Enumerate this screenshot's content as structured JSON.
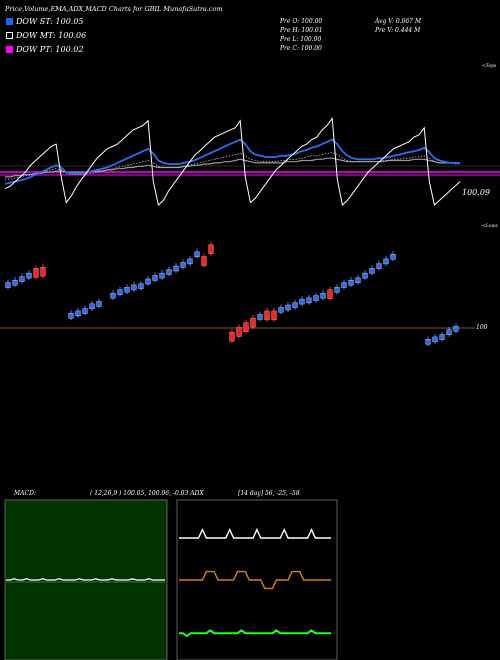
{
  "header": {
    "title": "Price,Volume,EMA,ADX,MACD Charts for GBIL MunafaSutra.com",
    "prev_open": "Pre   O: 100.00",
    "prev_high": "Pre   H: 100.01",
    "prev_low": "Pre   L: 100.00",
    "prev_close": "Pre   C: 100.00",
    "avg_vol": "Avg V: 0.067  M",
    "prev_vol": "Pre   V: 0.444  M"
  },
  "legend": [
    {
      "label": "DOW ST: 100.05",
      "color": "#1e64ff"
    },
    {
      "label": "DOW MT: 100.06",
      "color": "#000000"
    },
    {
      "label": "DOW PT: 100.02",
      "color": "#ff00ff"
    }
  ],
  "panel_labels": {
    "upper_right_top": "<Tops",
    "price_tag": "100.09",
    "lower_right_top": "<Lows",
    "price_level": "100"
  },
  "indicators": {
    "macd_label": "MACD:",
    "macd_values": "( 12,26,9 ) 100.05,  100.06,  -0.03 ADX",
    "adx_values": "[14  day] 56,  -25,  -58"
  },
  "colors": {
    "blue_ema": "#2a6df4",
    "dotted_ema": "#bfbfbf",
    "magenta": "#ff00ff",
    "up_candle": "#2a6df4",
    "down_candle": "#ff2020",
    "macd_bg": "#003300",
    "adx_white": "#ffffff",
    "adx_orange": "#e08000",
    "adx_green": "#22ff22"
  },
  "chart_data": {
    "type": "line",
    "upper_panel": {
      "description_series": [
        "price_white",
        "ema_blue",
        "ema_gray",
        "ema_dotted"
      ],
      "magenta_level": 100.02,
      "last_price": 100.09,
      "x": [
        0,
        1,
        2,
        3,
        4,
        5,
        6,
        7,
        8,
        9,
        10,
        11,
        12,
        13,
        14,
        15,
        16,
        17,
        18,
        19,
        20,
        21,
        22,
        23,
        24,
        25,
        26,
        27,
        28,
        29,
        30,
        31,
        32,
        33,
        34,
        35,
        36,
        37,
        38,
        39,
        40,
        41,
        42,
        43,
        44,
        45,
        46,
        47,
        48,
        49,
        50,
        51,
        52,
        53,
        54,
        55,
        56,
        57,
        58,
        59,
        60,
        61,
        62,
        63,
        64,
        65,
        66,
        67,
        68,
        69,
        70,
        71,
        72,
        73,
        74,
        75,
        76,
        77,
        78,
        79,
        80,
        81,
        82,
        83,
        84,
        85,
        86,
        87,
        88,
        89
      ],
      "price_white": [
        20,
        22,
        26,
        30,
        34,
        40,
        44,
        48,
        52,
        56,
        58,
        30,
        8,
        14,
        22,
        28,
        34,
        40,
        46,
        50,
        54,
        56,
        58,
        62,
        66,
        70,
        72,
        74,
        78,
        26,
        6,
        10,
        18,
        24,
        30,
        36,
        42,
        48,
        52,
        56,
        60,
        64,
        66,
        68,
        70,
        72,
        78,
        30,
        8,
        12,
        18,
        24,
        30,
        36,
        40,
        44,
        48,
        52,
        56,
        58,
        62,
        64,
        70,
        74,
        80,
        28,
        6,
        10,
        16,
        22,
        28,
        34,
        38,
        42,
        46,
        50,
        54,
        56,
        58,
        60,
        64,
        66,
        72,
        26,
        6,
        10,
        14,
        18,
        22,
        26
      ],
      "ema_blue": [
        24,
        25,
        26,
        27,
        28,
        30,
        32,
        34,
        36,
        38,
        40,
        38,
        34,
        33,
        33,
        33,
        34,
        35,
        36,
        37,
        38,
        40,
        42,
        44,
        46,
        48,
        50,
        52,
        54,
        50,
        44,
        42,
        41,
        41,
        41,
        42,
        43,
        44,
        46,
        48,
        50,
        52,
        54,
        56,
        58,
        60,
        62,
        58,
        52,
        49,
        48,
        47,
        47,
        47,
        48,
        48,
        49,
        50,
        52,
        53,
        55,
        56,
        58,
        60,
        62,
        58,
        52,
        48,
        46,
        45,
        45,
        45,
        45,
        46,
        46,
        47,
        48,
        49,
        50,
        51,
        52,
        53,
        55,
        51,
        46,
        44,
        43,
        42,
        42,
        42
      ],
      "ema_gray": [
        30,
        30,
        31,
        31,
        32,
        32,
        33,
        33,
        34,
        34,
        35,
        35,
        34,
        34,
        34,
        34,
        34,
        35,
        35,
        35,
        36,
        36,
        37,
        37,
        38,
        38,
        39,
        39,
        40,
        39,
        38,
        38,
        38,
        38,
        38,
        39,
        39,
        40,
        40,
        41,
        41,
        42,
        42,
        43,
        43,
        44,
        45,
        44,
        43,
        42,
        42,
        42,
        42,
        42,
        42,
        43,
        43,
        43,
        44,
        44,
        44,
        45,
        45,
        46,
        46,
        45,
        44,
        43,
        43,
        43,
        43,
        43,
        43,
        43,
        43,
        44,
        44,
        44,
        44,
        44,
        45,
        45,
        45,
        44,
        43,
        42,
        42,
        42,
        42,
        42
      ],
      "ema_dotted": [
        28,
        28,
        29,
        30,
        31,
        32,
        33,
        34,
        35,
        36,
        37,
        36,
        33,
        32,
        32,
        32,
        33,
        33,
        34,
        35,
        36,
        37,
        38,
        39,
        40,
        41,
        42,
        43,
        44,
        42,
        39,
        38,
        38,
        38,
        38,
        39,
        40,
        41,
        42,
        43,
        44,
        45,
        46,
        47,
        48,
        49,
        50,
        48,
        45,
        44,
        43,
        43,
        43,
        43,
        44,
        44,
        45,
        45,
        46,
        47,
        48,
        48,
        49,
        50,
        51,
        49,
        46,
        44,
        43,
        43,
        43,
        43,
        43,
        43,
        44,
        44,
        45,
        45,
        46,
        46,
        47,
        47,
        48,
        46,
        43,
        42,
        42,
        42,
        41,
        41
      ],
      "ylim": [
        0,
        100
      ]
    },
    "candles": [
      [
        0,
        74,
        0
      ],
      [
        1,
        76,
        0
      ],
      [
        2,
        79,
        0
      ],
      [
        3,
        82,
        0
      ],
      [
        4,
        86,
        1
      ],
      [
        5,
        87,
        1
      ],
      [
        9,
        48,
        0
      ],
      [
        10,
        50,
        0
      ],
      [
        11,
        52,
        0
      ],
      [
        12,
        56,
        0
      ],
      [
        13,
        58,
        0
      ],
      [
        15,
        65,
        0
      ],
      [
        16,
        68,
        0
      ],
      [
        17,
        70,
        0
      ],
      [
        18,
        72,
        0
      ],
      [
        19,
        73,
        0
      ],
      [
        20,
        77,
        0
      ],
      [
        21,
        80,
        0
      ],
      [
        22,
        82,
        0
      ],
      [
        23,
        85,
        0
      ],
      [
        24,
        88,
        0
      ],
      [
        25,
        91,
        0
      ],
      [
        26,
        94,
        0
      ],
      [
        27,
        100,
        0
      ],
      [
        28,
        96,
        1
      ],
      [
        29,
        106,
        1
      ],
      [
        32,
        32,
        1
      ],
      [
        33,
        36,
        1
      ],
      [
        34,
        40,
        1
      ],
      [
        35,
        44,
        1
      ],
      [
        36,
        47,
        0
      ],
      [
        37,
        50,
        1
      ],
      [
        38,
        50,
        1
      ],
      [
        39,
        53,
        0
      ],
      [
        40,
        55,
        0
      ],
      [
        41,
        57,
        0
      ],
      [
        42,
        60,
        0
      ],
      [
        43,
        61,
        0
      ],
      [
        44,
        63,
        0
      ],
      [
        45,
        65,
        0
      ],
      [
        46,
        68,
        1
      ],
      [
        47,
        70,
        0
      ],
      [
        48,
        74,
        0
      ],
      [
        49,
        76,
        0
      ],
      [
        50,
        78,
        0
      ],
      [
        51,
        82,
        0
      ],
      [
        52,
        86,
        0
      ],
      [
        53,
        90,
        0
      ],
      [
        54,
        94,
        0
      ],
      [
        55,
        98,
        0
      ],
      [
        60,
        26,
        0
      ],
      [
        61,
        28,
        0
      ],
      [
        62,
        30,
        0
      ],
      [
        63,
        34,
        0
      ],
      [
        64,
        37,
        0
      ]
    ],
    "candle_note": "each candle: [index, level, is_down]",
    "macd": {
      "series": [
        {
          "values": [
            50,
            50,
            51,
            50,
            50,
            51,
            50,
            50,
            50,
            51,
            50,
            50,
            50,
            51,
            50,
            50,
            50,
            50,
            51,
            50,
            50,
            50,
            51,
            50,
            50,
            50,
            51,
            50,
            50,
            50,
            50,
            51,
            50,
            50,
            50,
            51,
            50,
            50,
            50,
            50
          ]
        }
      ]
    },
    "adx": {
      "series": [
        {
          "values": [
            80,
            80,
            80,
            80,
            80,
            80,
            86,
            80,
            80,
            80,
            80,
            80,
            80,
            86,
            80,
            80,
            80,
            80,
            80,
            80,
            86,
            80,
            80,
            80,
            80,
            80,
            80,
            86,
            80,
            80,
            80,
            80,
            80,
            80,
            86,
            80,
            80,
            80,
            80,
            80
          ]
        },
        {
          "values": [
            50,
            50,
            50,
            50,
            50,
            50,
            50,
            56,
            56,
            56,
            50,
            50,
            50,
            50,
            50,
            56,
            56,
            56,
            50,
            50,
            50,
            50,
            44,
            44,
            44,
            50,
            50,
            50,
            50,
            56,
            56,
            56,
            50,
            50,
            50,
            50,
            50,
            50,
            50,
            50
          ]
        },
        {
          "values": [
            12,
            12,
            10,
            12,
            12,
            12,
            12,
            12,
            14,
            12,
            12,
            12,
            12,
            12,
            12,
            12,
            14,
            12,
            12,
            12,
            12,
            12,
            12,
            12,
            12,
            14,
            12,
            12,
            12,
            12,
            12,
            12,
            12,
            12,
            14,
            12,
            12,
            12,
            12,
            12
          ]
        }
      ]
    }
  }
}
